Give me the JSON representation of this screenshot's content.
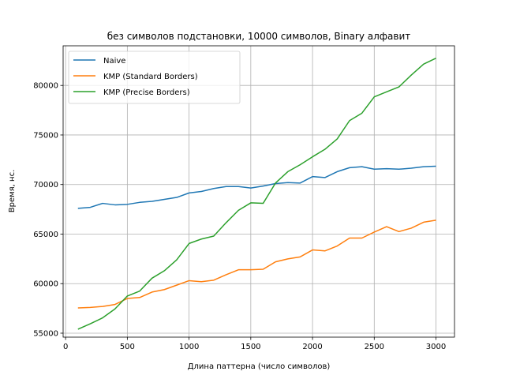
{
  "chart_data": {
    "type": "line",
    "title": "без символов подстановки, 10000 символов, Binary алфавит",
    "xlabel": "Длина паттерна (число символов)",
    "ylabel": "Время, нс.",
    "xlim": [
      -20,
      3150
    ],
    "ylim": [
      54600,
      84000
    ],
    "xticks": [
      0,
      500,
      1000,
      1500,
      2000,
      2500,
      3000
    ],
    "yticks": [
      55000,
      60000,
      65000,
      70000,
      75000,
      80000
    ],
    "grid": true,
    "legend_position": "top-left",
    "x": [
      100,
      200,
      300,
      400,
      500,
      600,
      700,
      800,
      900,
      1000,
      1100,
      1200,
      1300,
      1400,
      1500,
      1600,
      1700,
      1800,
      1900,
      2000,
      2100,
      2200,
      2300,
      2400,
      2500,
      2600,
      2700,
      2800,
      2900,
      3000
    ],
    "series": [
      {
        "name": "Naive",
        "color": "#1f77b4",
        "values": [
          67600,
          67700,
          68100,
          67950,
          68000,
          68200,
          68300,
          68500,
          68700,
          69150,
          69300,
          69600,
          69800,
          69800,
          69650,
          69850,
          70100,
          70200,
          70150,
          70800,
          70700,
          71300,
          71700,
          71800,
          71550,
          71600,
          71550,
          71650,
          71800,
          71850
        ]
      },
      {
        "name": "KMP (Standard Borders)",
        "color": "#ff7f0e",
        "values": [
          57550,
          57600,
          57700,
          57900,
          58500,
          58600,
          59150,
          59400,
          59850,
          60300,
          60200,
          60350,
          60900,
          61400,
          61400,
          61450,
          62200,
          62500,
          62700,
          63400,
          63300,
          63800,
          64600,
          64600,
          65200,
          65750,
          65250,
          65600,
          66200,
          66400
        ]
      },
      {
        "name": "KMP (Precise Borders)",
        "color": "#2ca02c",
        "values": [
          55400,
          55950,
          56550,
          57450,
          58750,
          59250,
          60550,
          61300,
          62400,
          64050,
          64500,
          64800,
          66150,
          67400,
          68150,
          68100,
          70150,
          71300,
          72000,
          72800,
          73550,
          74600,
          76450,
          77200,
          78850,
          79350,
          79850,
          81050,
          82150,
          82750
        ]
      }
    ]
  }
}
